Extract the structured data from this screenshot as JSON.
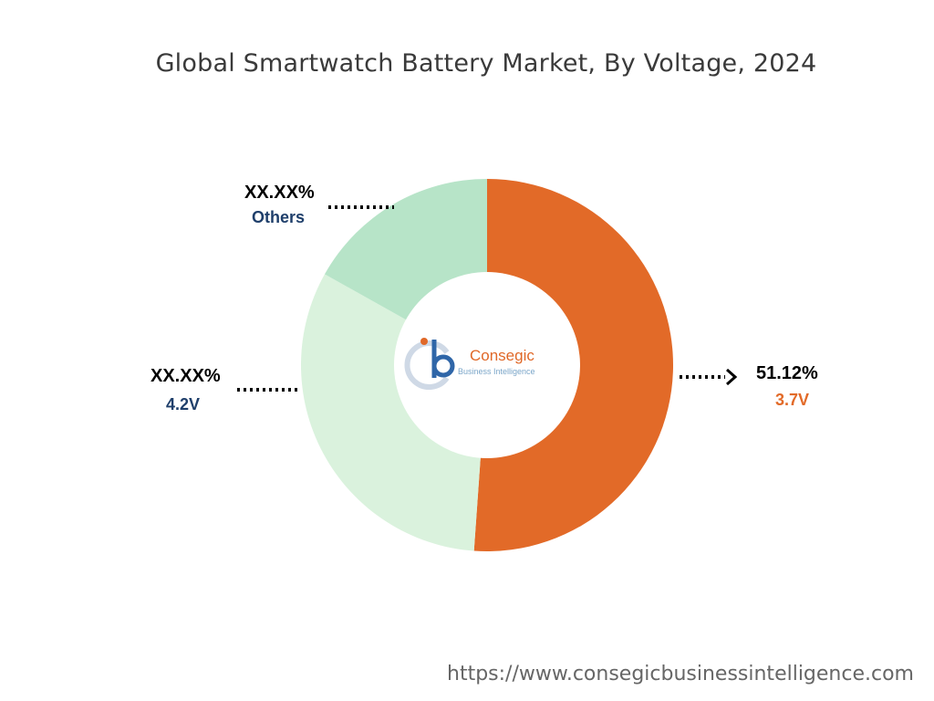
{
  "chart_data": {
    "type": "pie",
    "variant": "donut",
    "title": "Global Smartwatch Battery Market, By Voltage, 2024",
    "slices": [
      {
        "label": "3.7V",
        "value": 51.12,
        "value_label": "51.12%",
        "color": "#e26a28",
        "label_color": "#e26a28"
      },
      {
        "label": "4.2V",
        "value": 32.0,
        "value_label": "XX.XX%",
        "color": "#daf2dd",
        "label_color": "#1f3f6b"
      },
      {
        "label": "Others",
        "value": 16.88,
        "value_label": "XX.XX%",
        "color": "#b7e4c8",
        "label_color": "#1f3f6b"
      }
    ]
  },
  "logo": {
    "name": "Consegic",
    "tagline": "Business Intelligence"
  },
  "footer": {
    "url": "https://www.consegicbusinessintelligence.com"
  }
}
